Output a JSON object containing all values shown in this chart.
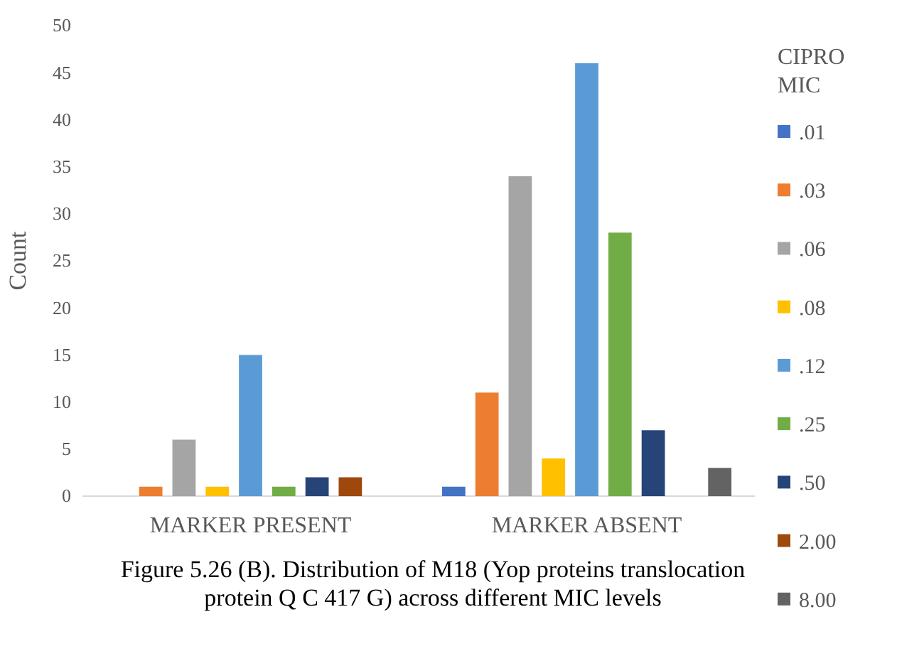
{
  "chart_data": {
    "type": "bar",
    "ylabel": "Count",
    "legend_title": "CIPRO MIC",
    "legend": "right",
    "grid": false,
    "categories": [
      "MARKER PRESENT",
      "MARKER ABSENT"
    ],
    "ylim": [
      0,
      50
    ],
    "yticks": [
      0,
      5,
      10,
      15,
      20,
      25,
      30,
      35,
      40,
      45,
      50
    ],
    "series": [
      {
        "name": ".01",
        "color": "#4472c4",
        "values": [
          0,
          1
        ]
      },
      {
        "name": ".03",
        "color": "#ed7d31",
        "values": [
          1,
          11
        ]
      },
      {
        "name": ".06",
        "color": "#a5a5a5",
        "values": [
          6,
          34
        ]
      },
      {
        "name": ".08",
        "color": "#ffc000",
        "values": [
          1,
          4
        ]
      },
      {
        "name": ".12",
        "color": "#5b9bd5",
        "values": [
          15,
          46
        ]
      },
      {
        "name": ".25",
        "color": "#70ad47",
        "values": [
          1,
          28
        ]
      },
      {
        "name": ".50",
        "color": "#264478",
        "values": [
          2,
          7
        ]
      },
      {
        "name": "2.00",
        "color": "#9e480e",
        "values": [
          2,
          0
        ]
      },
      {
        "name": "8.00",
        "color": "#636363",
        "values": [
          0,
          3
        ]
      }
    ],
    "annotations": [
      "Figure 5.26 (B). Distribution of M18 (Yop proteins translocation protein Q C 417 G) across different MIC levels"
    ]
  }
}
